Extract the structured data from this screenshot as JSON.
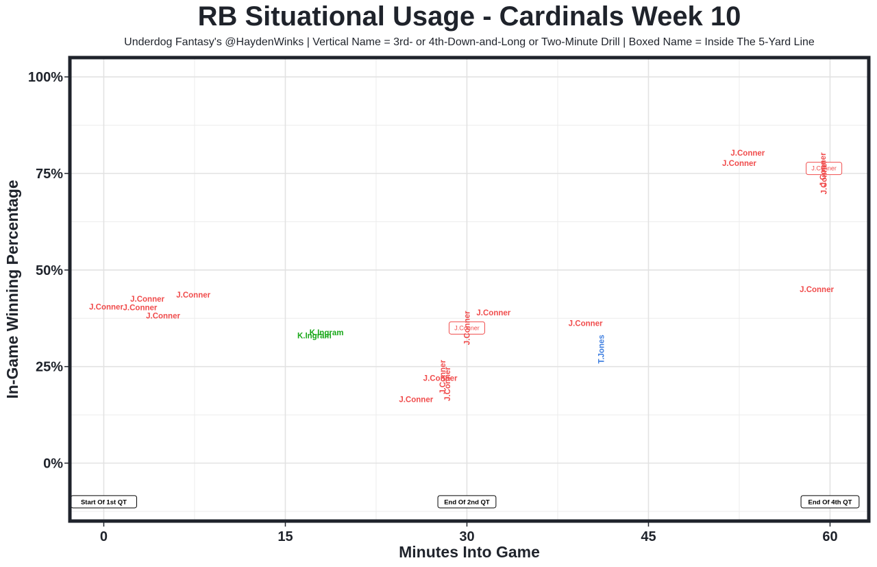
{
  "title": "RB Situational Usage - Cardinals Week 10",
  "subtitle": "Underdog Fantasy's @HaydenWinks | Vertical Name = 3rd- or 4th-Down-and-Long or Two-Minute Drill | Boxed Name = Inside The 5-Yard Line",
  "chart_data": {
    "type": "scatter",
    "title": "RB Situational Usage - Cardinals Week 10",
    "xlabel": "Minutes Into Game",
    "ylabel": "In-Game Winning Percentage",
    "xlim": [
      -2.8,
      63.2
    ],
    "ylim": [
      -15,
      105
    ],
    "x_ticks": [
      0,
      15,
      30,
      45,
      60
    ],
    "x_tick_labels": [
      "0",
      "15",
      "30",
      "45",
      "60"
    ],
    "y_ticks": [
      0,
      25,
      50,
      75,
      100
    ],
    "y_tick_labels": [
      "0%",
      "25%",
      "50%",
      "75%",
      "100%"
    ],
    "grid": true,
    "colors": {
      "J.Conner": "#f04c4c",
      "K.Ingram": "#1aa81a",
      "T.Jones": "#3f7fe0"
    },
    "points": [
      {
        "name": "J.Conner",
        "x": 0.2,
        "y": 40.5,
        "style": "normal"
      },
      {
        "name": "J.Conner",
        "x": 3.6,
        "y": 42.5,
        "style": "normal"
      },
      {
        "name": "J.Conner",
        "x": 3.0,
        "y": 40.3,
        "style": "normal"
      },
      {
        "name": "J.Conner",
        "x": 4.9,
        "y": 38.2,
        "style": "normal"
      },
      {
        "name": "J.Conner",
        "x": 7.4,
        "y": 43.6,
        "style": "normal"
      },
      {
        "name": "K.Ingram",
        "x": 17.4,
        "y": 33.0,
        "style": "normal"
      },
      {
        "name": "K.Ingram",
        "x": 18.4,
        "y": 33.8,
        "style": "normal"
      },
      {
        "name": "J.Conner",
        "x": 25.8,
        "y": 16.5,
        "style": "normal"
      },
      {
        "name": "J.Conner",
        "x": 27.8,
        "y": 22.0,
        "style": "normal"
      },
      {
        "name": "J.Conner",
        "x": 28.0,
        "y": 22.3,
        "style": "vertical"
      },
      {
        "name": "J.Conner",
        "x": 28.4,
        "y": 20.5,
        "style": "vertical"
      },
      {
        "name": "J.Conner",
        "x": 30.0,
        "y": 35.0,
        "style": "boxed"
      },
      {
        "name": "J.Conner",
        "x": 30.0,
        "y": 35.0,
        "style": "vertical"
      },
      {
        "name": "J.Conner",
        "x": 32.2,
        "y": 39.0,
        "style": "normal"
      },
      {
        "name": "J.Conner",
        "x": 39.8,
        "y": 36.2,
        "style": "normal"
      },
      {
        "name": "T.Jones",
        "x": 41.1,
        "y": 29.5,
        "style": "vertical"
      },
      {
        "name": "J.Conner",
        "x": 52.5,
        "y": 77.7,
        "style": "normal"
      },
      {
        "name": "J.Conner",
        "x": 53.2,
        "y": 80.3,
        "style": "normal"
      },
      {
        "name": "J.Conner",
        "x": 58.9,
        "y": 45.0,
        "style": "normal"
      },
      {
        "name": "J.Conner",
        "x": 59.5,
        "y": 76.3,
        "style": "boxed"
      },
      {
        "name": "J.Conner",
        "x": 59.4,
        "y": 76.0,
        "style": "vertical"
      },
      {
        "name": "J.Conner",
        "x": 59.5,
        "y": 74.0,
        "style": "vertical"
      }
    ],
    "annotations": [
      {
        "text": "Start Of 1st QT",
        "x": 0,
        "y": -10
      },
      {
        "text": "End Of 2nd QT",
        "x": 30,
        "y": -10
      },
      {
        "text": "End Of 4th QT",
        "x": 60,
        "y": -10
      }
    ]
  }
}
